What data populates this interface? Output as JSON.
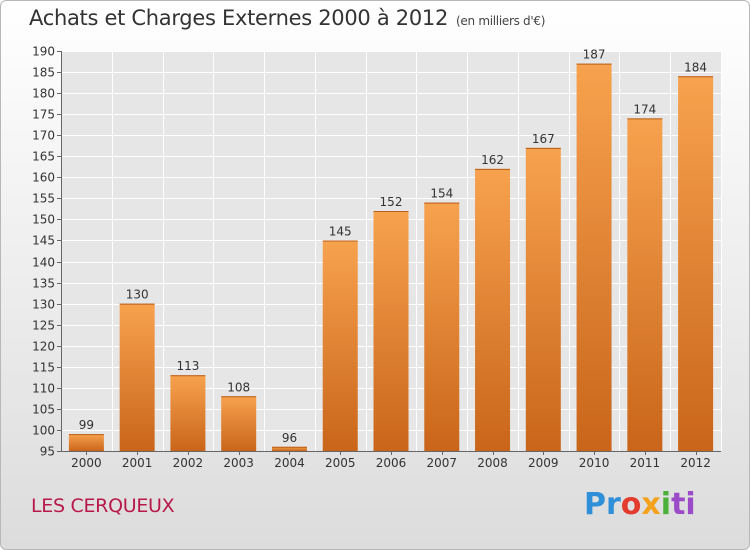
{
  "chart_data": {
    "type": "bar",
    "title": "Achats et Charges Externes 2000 à 2012",
    "subtitle": "(en milliers d'€)",
    "categories": [
      "2000",
      "2001",
      "2002",
      "2003",
      "2004",
      "2005",
      "2006",
      "2007",
      "2008",
      "2009",
      "2010",
      "2011",
      "2012"
    ],
    "values": [
      99,
      130,
      113,
      108,
      96,
      145,
      152,
      154,
      162,
      167,
      187,
      174,
      184
    ],
    "ylim": [
      95,
      190
    ],
    "yticks": [
      95,
      100,
      105,
      110,
      115,
      120,
      125,
      130,
      135,
      140,
      145,
      150,
      155,
      160,
      165,
      170,
      175,
      180,
      185,
      190
    ],
    "grid": true,
    "bar_color_top": "#f7a24e",
    "bar_color_bottom": "#c9651a",
    "xlabel": "",
    "ylabel": ""
  },
  "footer": {
    "place": "LES CERQUEUX",
    "brand_parts": [
      "Pr",
      "o",
      "x",
      "i",
      "ti"
    ]
  }
}
